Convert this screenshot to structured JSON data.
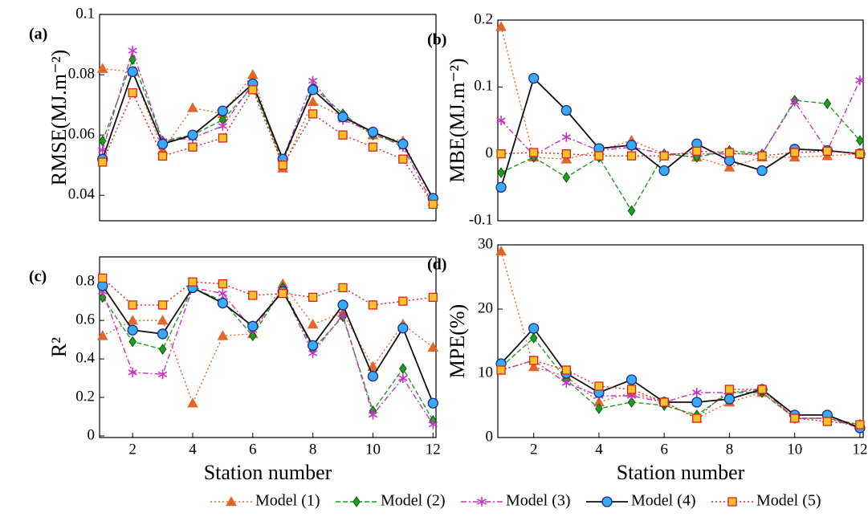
{
  "chart_data": [
    {
      "type": "line",
      "panel_label": "(a)",
      "y_label": "RMSE(MJ.m⁻²)",
      "x": [
        1,
        2,
        3,
        4,
        5,
        6,
        7,
        8,
        9,
        10,
        11,
        12
      ],
      "xlim": [
        0.9,
        12.1
      ],
      "ylim": [
        0.035,
        0.1
      ],
      "yticks": [
        0.04,
        0.06,
        0.08,
        0.1
      ],
      "series": [
        {
          "name": "Model (1)",
          "color": "#e0662a",
          "marker": "triangle",
          "dash": "dotted",
          "values": [
            0.082,
            0.081,
            0.055,
            0.069,
            0.067,
            0.08,
            0.049,
            0.071,
            0.066,
            0.06,
            0.058,
            0.038
          ]
        },
        {
          "name": "Model (2)",
          "color": "#1e9e1e",
          "marker": "diamond",
          "dash": "dashed",
          "values": [
            0.058,
            0.085,
            0.058,
            0.06,
            0.065,
            0.076,
            0.051,
            0.076,
            0.067,
            0.06,
            0.057,
            0.039
          ]
        },
        {
          "name": "Model (3)",
          "color": "#c832c8",
          "marker": "star",
          "dash": "dashdot",
          "values": [
            0.055,
            0.088,
            0.058,
            0.059,
            0.063,
            0.077,
            0.052,
            0.078,
            0.065,
            0.061,
            0.056,
            0.037
          ]
        },
        {
          "name": "Model (4)",
          "color": "#111111",
          "marker": "circle",
          "marker_color": "#3aaaf0",
          "dash": "solid",
          "values": [
            0.052,
            0.081,
            0.057,
            0.06,
            0.068,
            0.077,
            0.052,
            0.075,
            0.066,
            0.061,
            0.057,
            0.039
          ]
        },
        {
          "name": "Model (5)",
          "color": "#e0201e",
          "marker": "square",
          "marker_color": "#f2c22a",
          "dash": "dotted",
          "values": [
            0.051,
            0.074,
            0.053,
            0.056,
            0.059,
            0.075,
            0.05,
            0.067,
            0.06,
            0.056,
            0.052,
            0.037
          ]
        }
      ]
    },
    {
      "type": "line",
      "panel_label": "(b)",
      "y_label": "MBE(MJ.m⁻²)",
      "x": [
        1,
        2,
        3,
        4,
        5,
        6,
        7,
        8,
        9,
        10,
        11,
        12
      ],
      "xlim": [
        0.9,
        12.1
      ],
      "ylim": [
        -0.1,
        0.2
      ],
      "yticks": [
        -0.1,
        0,
        0.1,
        0.2
      ],
      "series": [
        {
          "values": [
            0.19,
            -0.005,
            -0.008,
            0.005,
            0.02,
            0.0,
            -0.005,
            -0.02,
            -0.005,
            -0.005,
            -0.003,
            0.0
          ]
        },
        {
          "values": [
            -0.028,
            -0.005,
            -0.035,
            -0.005,
            -0.085,
            0.0,
            -0.005,
            0.005,
            0.0,
            0.08,
            0.075,
            0.02
          ]
        },
        {
          "values": [
            0.05,
            -0.002,
            0.025,
            0.005,
            0.01,
            0.0,
            0.0,
            0.0,
            0.0,
            0.078,
            0.005,
            0.11
          ]
        },
        {
          "values": [
            -0.05,
            0.113,
            0.065,
            0.008,
            0.013,
            -0.025,
            0.015,
            -0.01,
            -0.025,
            0.007,
            0.005,
            0.0
          ]
        },
        {
          "values": [
            0.0,
            0.002,
            0.0,
            -0.003,
            -0.003,
            -0.003,
            0.004,
            0.002,
            -0.003,
            0.002,
            0.004,
            0.0
          ]
        }
      ]
    },
    {
      "type": "line",
      "panel_label": "(c)",
      "y_label": "R²",
      "x_label": "Station number",
      "x": [
        1,
        2,
        3,
        4,
        5,
        6,
        7,
        8,
        9,
        10,
        11,
        12
      ],
      "xlim": [
        0.9,
        12.1
      ],
      "xticks": [
        2,
        4,
        6,
        8,
        10,
        12
      ],
      "ylim": [
        0,
        0.93
      ],
      "yticks": [
        0,
        0.2,
        0.4,
        0.6,
        0.8
      ],
      "series": [
        {
          "values": [
            0.52,
            0.6,
            0.6,
            0.17,
            0.52,
            0.53,
            0.79,
            0.58,
            0.64,
            0.36,
            0.58,
            0.46
          ]
        },
        {
          "values": [
            0.72,
            0.49,
            0.45,
            0.77,
            0.7,
            0.52,
            0.77,
            0.45,
            0.62,
            0.13,
            0.35,
            0.08
          ]
        },
        {
          "values": [
            0.75,
            0.33,
            0.32,
            0.77,
            0.74,
            0.55,
            0.76,
            0.43,
            0.63,
            0.11,
            0.3,
            0.06
          ]
        },
        {
          "values": [
            0.78,
            0.55,
            0.53,
            0.77,
            0.69,
            0.57,
            0.75,
            0.47,
            0.68,
            0.31,
            0.56,
            0.17
          ]
        },
        {
          "values": [
            0.82,
            0.68,
            0.68,
            0.8,
            0.79,
            0.73,
            0.74,
            0.72,
            0.77,
            0.68,
            0.7,
            0.72
          ]
        }
      ]
    },
    {
      "type": "line",
      "panel_label": "(d)",
      "y_label": "MPE(%)",
      "x_label": "Station number",
      "x": [
        1,
        2,
        3,
        4,
        5,
        6,
        7,
        8,
        9,
        10,
        11,
        12
      ],
      "xlim": [
        0.9,
        12.1
      ],
      "xticks": [
        2,
        4,
        6,
        8,
        10,
        12
      ],
      "ylim": [
        0,
        30
      ],
      "yticks": [
        0,
        10,
        20,
        30
      ],
      "series": [
        {
          "values": [
            29,
            11,
            9.5,
            5.5,
            7,
            5.5,
            3,
            5.5,
            7,
            3,
            3,
            2
          ]
        },
        {
          "values": [
            11,
            15.5,
            9,
            4.5,
            5.5,
            5,
            3.5,
            7,
            7,
            3,
            3,
            2
          ]
        },
        {
          "values": [
            10.5,
            12,
            8.5,
            6.5,
            6.5,
            5.5,
            7,
            7,
            7.5,
            3,
            3,
            1.5
          ]
        },
        {
          "values": [
            11.5,
            17,
            10,
            7,
            9,
            5.5,
            5.5,
            6,
            7.5,
            3.5,
            3.5,
            1.5
          ]
        },
        {
          "values": [
            10.5,
            12,
            10.5,
            8,
            7.5,
            5.5,
            3,
            7.5,
            7.5,
            3,
            2.5,
            2
          ]
        }
      ]
    }
  ]
}
